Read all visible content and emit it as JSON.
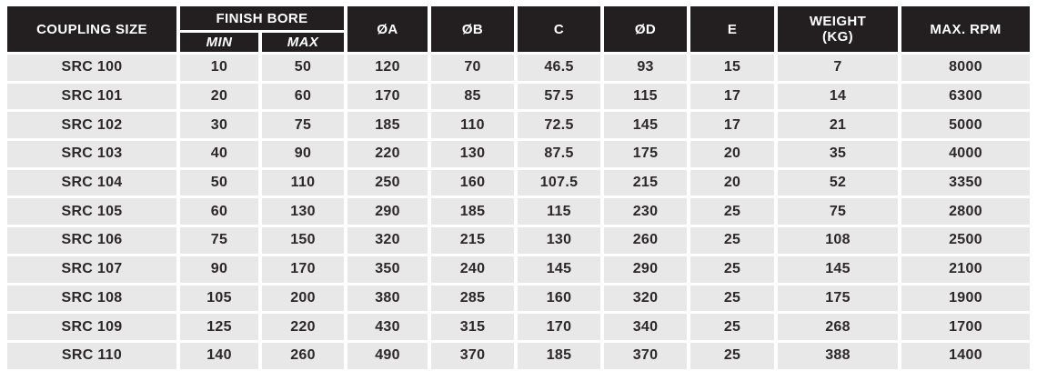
{
  "table": {
    "header": {
      "coupling_size": "COUPLING SIZE",
      "finish_bore": "FINISH BORE",
      "min": "MIN",
      "max": "MAX",
      "dia_a": "ØA",
      "dia_b": "ØB",
      "c": "C",
      "dia_d": "ØD",
      "e": "E",
      "weight_line1": "WEIGHT",
      "weight_line2": "(KG)",
      "max_rpm": "MAX. RPM"
    },
    "columns": [
      "coupling_size",
      "min",
      "max",
      "dia_a",
      "dia_b",
      "c",
      "dia_d",
      "e",
      "weight_kg",
      "max_rpm"
    ],
    "rows": [
      {
        "coupling_size": "SRC 100",
        "min": "10",
        "max": "50",
        "dia_a": "120",
        "dia_b": "70",
        "c": "46.5",
        "dia_d": "93",
        "e": "15",
        "weight_kg": "7",
        "max_rpm": "8000"
      },
      {
        "coupling_size": "SRC 101",
        "min": "20",
        "max": "60",
        "dia_a": "170",
        "dia_b": "85",
        "c": "57.5",
        "dia_d": "115",
        "e": "17",
        "weight_kg": "14",
        "max_rpm": "6300"
      },
      {
        "coupling_size": "SRC 102",
        "min": "30",
        "max": "75",
        "dia_a": "185",
        "dia_b": "110",
        "c": "72.5",
        "dia_d": "145",
        "e": "17",
        "weight_kg": "21",
        "max_rpm": "5000"
      },
      {
        "coupling_size": "SRC 103",
        "min": "40",
        "max": "90",
        "dia_a": "220",
        "dia_b": "130",
        "c": "87.5",
        "dia_d": "175",
        "e": "20",
        "weight_kg": "35",
        "max_rpm": "4000"
      },
      {
        "coupling_size": "SRC 104",
        "min": "50",
        "max": "110",
        "dia_a": "250",
        "dia_b": "160",
        "c": "107.5",
        "dia_d": "215",
        "e": "20",
        "weight_kg": "52",
        "max_rpm": "3350"
      },
      {
        "coupling_size": "SRC 105",
        "min": "60",
        "max": "130",
        "dia_a": "290",
        "dia_b": "185",
        "c": "115",
        "dia_d": "230",
        "e": "25",
        "weight_kg": "75",
        "max_rpm": "2800"
      },
      {
        "coupling_size": "SRC 106",
        "min": "75",
        "max": "150",
        "dia_a": "320",
        "dia_b": "215",
        "c": "130",
        "dia_d": "260",
        "e": "25",
        "weight_kg": "108",
        "max_rpm": "2500"
      },
      {
        "coupling_size": "SRC 107",
        "min": "90",
        "max": "170",
        "dia_a": "350",
        "dia_b": "240",
        "c": "145",
        "dia_d": "290",
        "e": "25",
        "weight_kg": "145",
        "max_rpm": "2100"
      },
      {
        "coupling_size": "SRC 108",
        "min": "105",
        "max": "200",
        "dia_a": "380",
        "dia_b": "285",
        "c": "160",
        "dia_d": "320",
        "e": "25",
        "weight_kg": "175",
        "max_rpm": "1900"
      },
      {
        "coupling_size": "SRC 109",
        "min": "125",
        "max": "220",
        "dia_a": "430",
        "dia_b": "315",
        "c": "170",
        "dia_d": "340",
        "e": "25",
        "weight_kg": "268",
        "max_rpm": "1700"
      },
      {
        "coupling_size": "SRC 110",
        "min": "140",
        "max": "260",
        "dia_a": "490",
        "dia_b": "370",
        "c": "185",
        "dia_d": "370",
        "e": "25",
        "weight_kg": "388",
        "max_rpm": "1400"
      }
    ]
  },
  "colors": {
    "header_bg": "#231f20",
    "header_text": "#ffffff",
    "row_bg": "#e8e8e8",
    "row_text": "#2c282a",
    "gutter": "#ffffff"
  }
}
